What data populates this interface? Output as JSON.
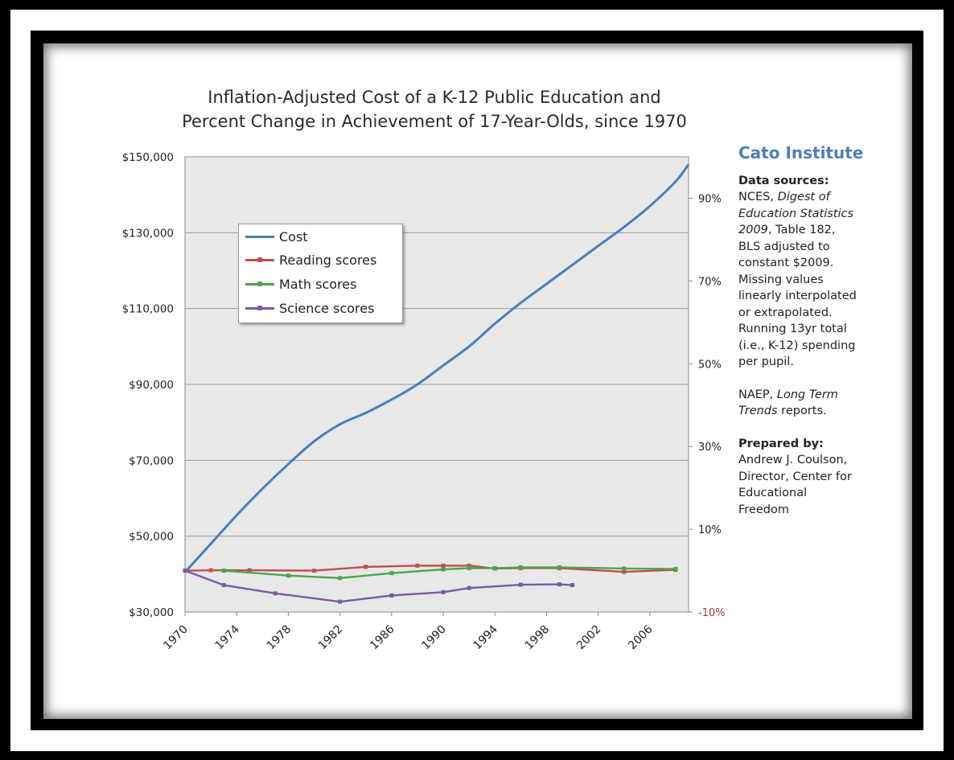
{
  "chart_data": {
    "type": "line",
    "title_line1": "Inflation-Adjusted Cost of a K-12 Public Education and",
    "title_line2": "Percent Change in Achievement of 17-Year-Olds, since 1970",
    "xlabel": "",
    "ylabel_left": "",
    "ylabel_right": "",
    "x_ticks": [
      "1970",
      "1974",
      "1978",
      "1982",
      "1986",
      "1990",
      "1994",
      "1998",
      "2002",
      "2006"
    ],
    "xlim": [
      1970,
      2009
    ],
    "y_left_ticks": [
      "$150,000",
      "$130,000",
      "$110,000",
      "$90,000",
      "$70,000",
      "$50,000",
      "$30,000"
    ],
    "y_left_lim": [
      30000,
      150000
    ],
    "y_right_ticks": [
      "90%",
      "70%",
      "50%",
      "30%",
      "10%",
      "-10%"
    ],
    "y_right_lim": [
      -10,
      100
    ],
    "grid": true,
    "legend_position": "upper-left",
    "series": [
      {
        "name": "Cost",
        "axis": "left",
        "color": "#4a7ebb",
        "markers": false,
        "points": [
          [
            1970,
            40500
          ],
          [
            1972,
            48000
          ],
          [
            1974,
            55500
          ],
          [
            1976,
            62500
          ],
          [
            1978,
            69000
          ],
          [
            1980,
            75000
          ],
          [
            1982,
            79500
          ],
          [
            1984,
            82500
          ],
          [
            1986,
            86000
          ],
          [
            1988,
            90000
          ],
          [
            1990,
            95000
          ],
          [
            1992,
            100000
          ],
          [
            1994,
            106000
          ],
          [
            1996,
            111500
          ],
          [
            1998,
            116500
          ],
          [
            2000,
            121500
          ],
          [
            2002,
            126500
          ],
          [
            2004,
            131500
          ],
          [
            2006,
            137000
          ],
          [
            2008,
            143500
          ],
          [
            2009,
            148000
          ]
        ]
      },
      {
        "name": "Reading scores",
        "axis": "right",
        "color": "#c0504d",
        "markers": true,
        "points": [
          [
            1970,
            0
          ],
          [
            1972,
            0.1
          ],
          [
            1975,
            0.1
          ],
          [
            1980,
            0
          ],
          [
            1984,
            0.9
          ],
          [
            1988,
            1.2
          ],
          [
            1990,
            1.2
          ],
          [
            1992,
            1.2
          ],
          [
            1994,
            0.5
          ],
          [
            1996,
            0.6
          ],
          [
            1999,
            0.6
          ],
          [
            2004,
            -0.3
          ],
          [
            2008,
            0.2
          ]
        ]
      },
      {
        "name": "Math scores",
        "axis": "right",
        "color": "#4ca64c",
        "markers": true,
        "points": [
          [
            1973,
            0
          ],
          [
            1978,
            -1.2
          ],
          [
            1982,
            -1.8
          ],
          [
            1986,
            -0.6
          ],
          [
            1990,
            0.3
          ],
          [
            1992,
            0.6
          ],
          [
            1994,
            0.6
          ],
          [
            1996,
            0.8
          ],
          [
            1999,
            0.8
          ],
          [
            2004,
            0.5
          ],
          [
            2008,
            0.4
          ]
        ]
      },
      {
        "name": "Science scores",
        "axis": "right",
        "color": "#7a5aa6",
        "markers": true,
        "points": [
          [
            1970,
            0
          ],
          [
            1973,
            -3.5
          ],
          [
            1977,
            -5.5
          ],
          [
            1982,
            -7.5
          ],
          [
            1986,
            -6
          ],
          [
            1990,
            -5.2
          ],
          [
            1992,
            -4.2
          ],
          [
            1996,
            -3.4
          ],
          [
            1999,
            -3.3
          ],
          [
            2000,
            -3.5
          ]
        ]
      }
    ]
  },
  "sidebar": {
    "brand": "Cato Institute",
    "sources_heading": "Data sources:",
    "nces_1": "NCES,",
    "nces_2": "Digest of",
    "nces_3": "Education Statistics",
    "nces_4": "2009",
    "nces_5": ", Table 182,",
    "nces_6": "BLS adjusted to",
    "nces_7": "constant $2009.",
    "nces_8": "Missing values",
    "nces_9": "linearly interpolated",
    "nces_10": "or extrapolated.",
    "nces_11": "Running 13yr total",
    "nces_12": "(i.e., K-12) spending",
    "nces_13": "per pupil.",
    "naep_1": "NAEP,",
    "naep_2": "Long Term",
    "naep_3": "Trends",
    "naep_4": " reports.",
    "prepared_heading": "Prepared by:",
    "prepared_1": "Andrew J. Coulson,",
    "prepared_2": "Director, Center for",
    "prepared_3": "Educational",
    "prepared_4": "Freedom"
  }
}
